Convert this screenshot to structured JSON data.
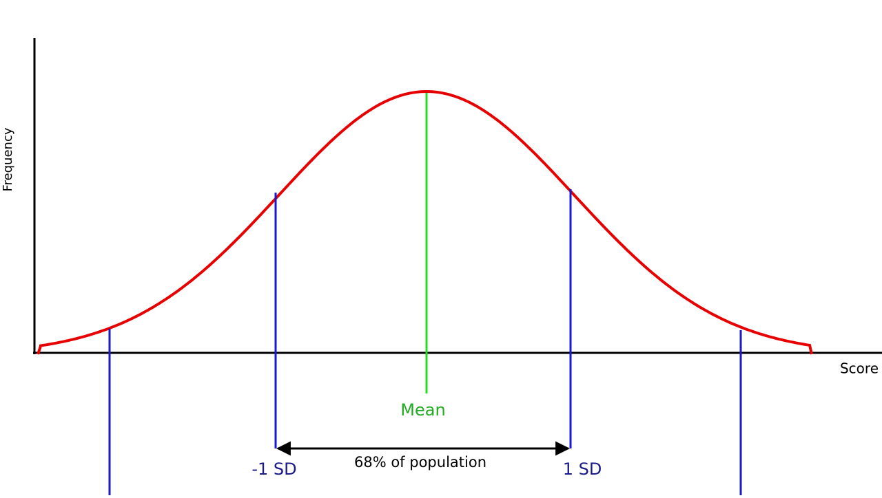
{
  "axes": {
    "y_label": "Frequency",
    "x_label": "Score"
  },
  "labels": {
    "mean": "Mean",
    "minus_sd": "-1 SD",
    "plus_sd": "1 SD",
    "range": "68% of population"
  }
}
